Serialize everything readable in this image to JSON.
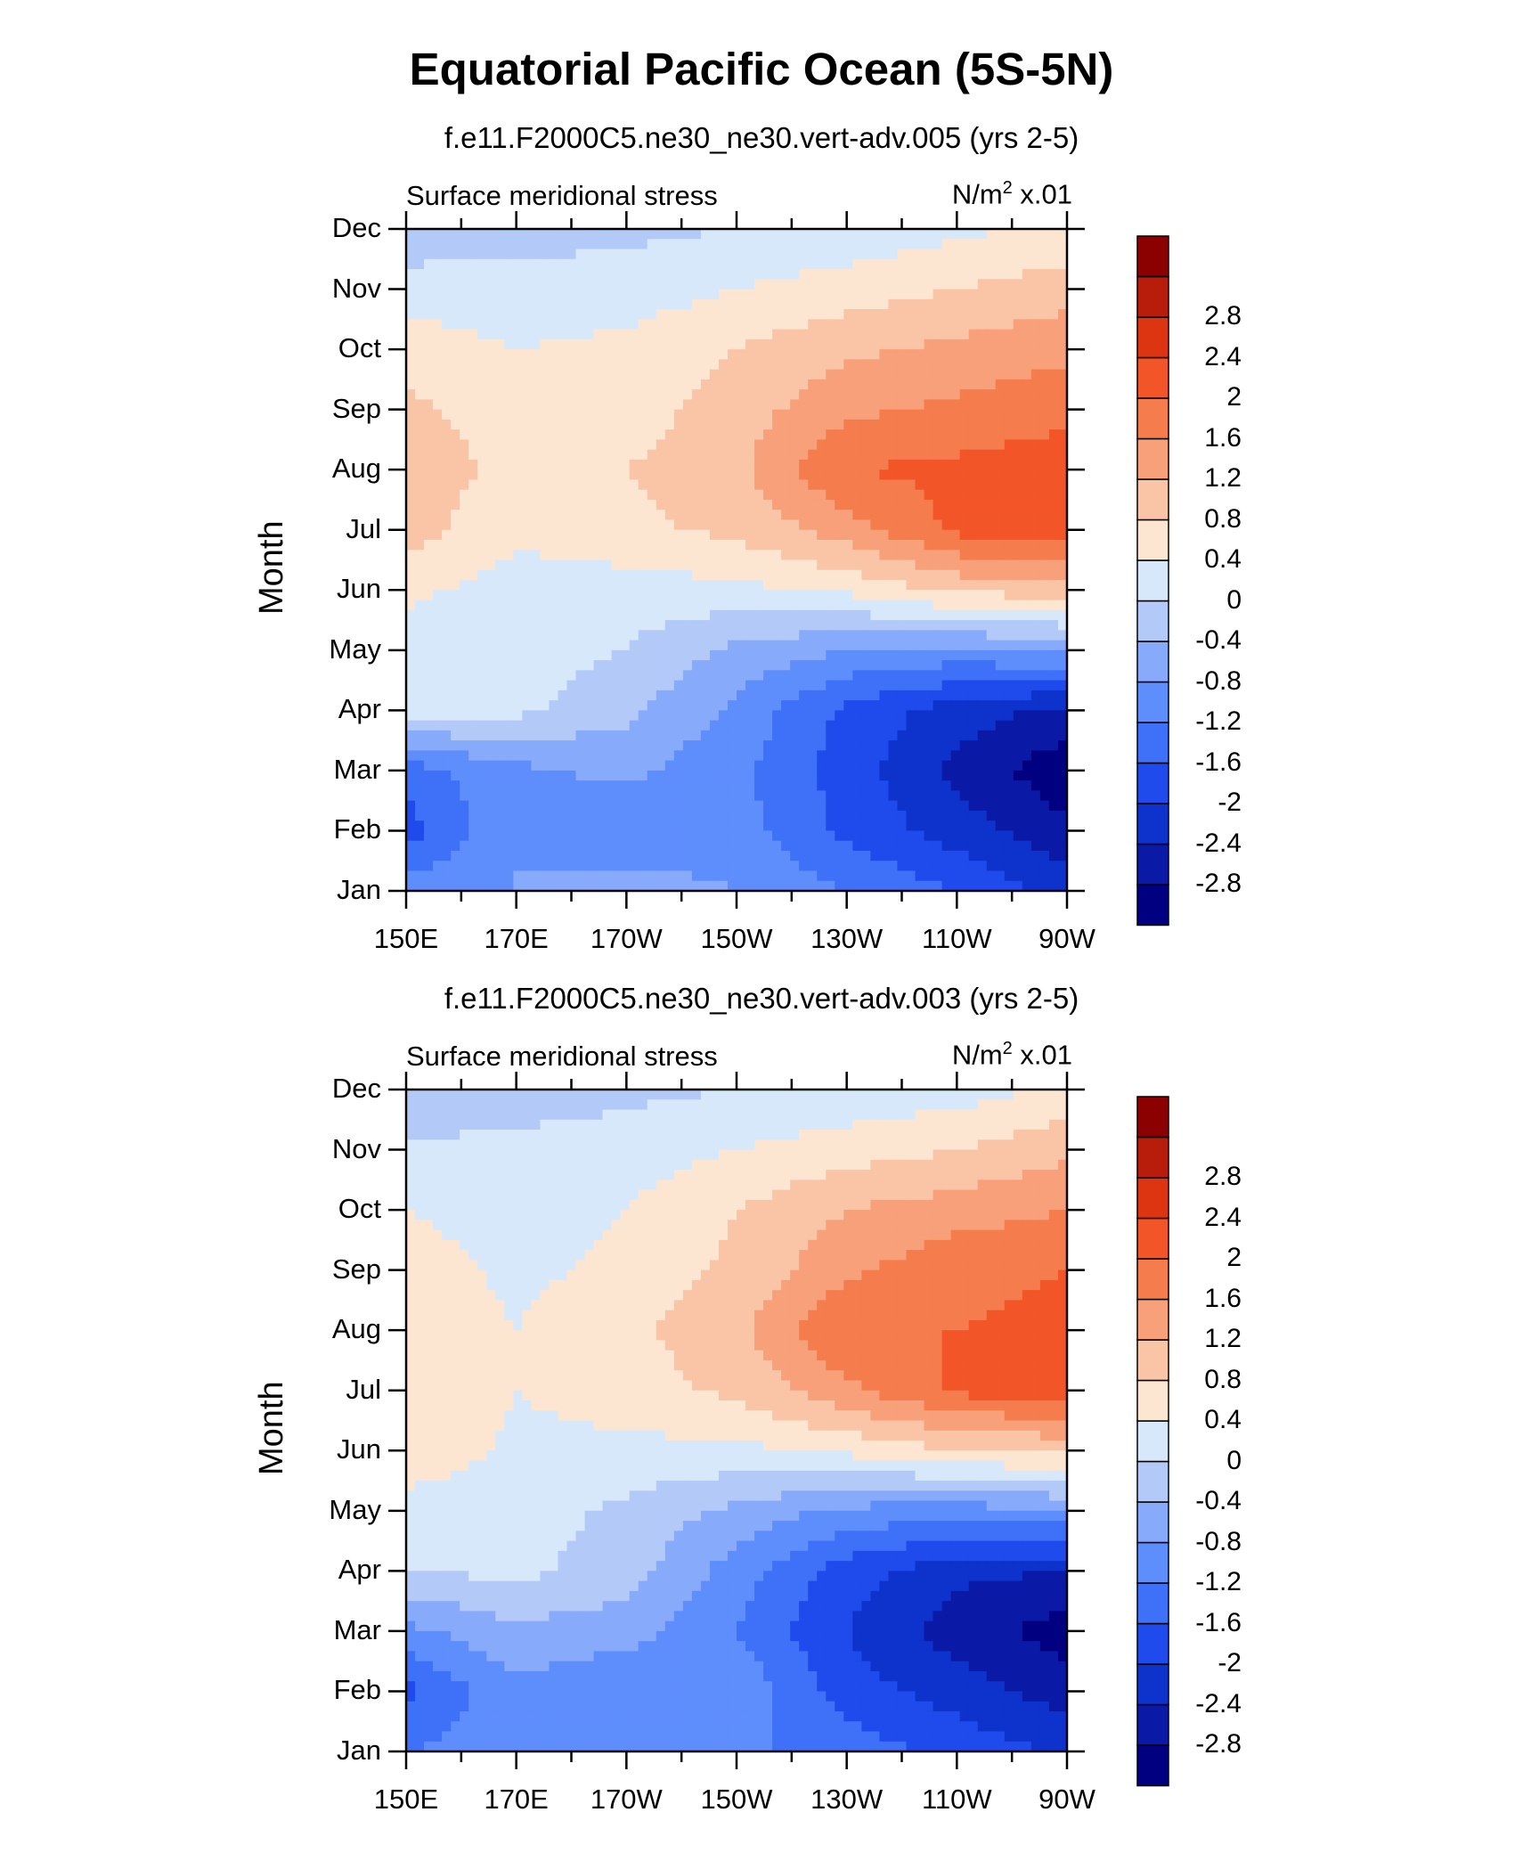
{
  "title": "Equatorial Pacific Ocean (5S-5N)",
  "panels": [
    {
      "run": "f.e11.F2000C5.ne30_ne30.vert-adv.005 (yrs 2-5)",
      "left_label": "Surface meridional stress",
      "units_pre": "N/m",
      "units_sup": "2",
      "units_post": " x.01"
    },
    {
      "run": "f.e11.F2000C5.ne30_ne30.vert-adv.003 (yrs 2-5)",
      "left_label": "Surface meridional stress",
      "units_pre": "N/m",
      "units_sup": "2",
      "units_post": " x.01"
    }
  ],
  "chart_data": [
    {
      "type": "heatmap",
      "title": "f.e11.F2000C5.ne30_ne30.vert-adv.005 (yrs 2-5)",
      "left_label": "Surface meridional stress",
      "units": "N/m2 x.01",
      "ylabel": "Month",
      "x": [
        "150E",
        "170E",
        "170W",
        "150W",
        "130W",
        "110W",
        "90W"
      ],
      "y": [
        "Jan",
        "Feb",
        "Mar",
        "Apr",
        "May",
        "Jun",
        "Jul",
        "Aug",
        "Sep",
        "Oct",
        "Nov",
        "Dec"
      ],
      "values": [
        [
          -1.0,
          -0.8,
          -0.6,
          -0.8,
          -1.2,
          -1.6,
          -2.2
        ],
        [
          -1.8,
          -0.8,
          -1.1,
          -1.0,
          -1.7,
          -2.2,
          -2.7
        ],
        [
          -1.4,
          -0.9,
          -0.7,
          -1.1,
          -1.8,
          -2.5,
          -3.1
        ],
        [
          0.2,
          0.1,
          -0.3,
          -0.9,
          -1.7,
          -2.2,
          -2.5
        ],
        [
          0.2,
          0.2,
          0.0,
          -0.5,
          -0.8,
          -0.9,
          -0.7
        ],
        [
          0.5,
          0.2,
          0.2,
          0.3,
          0.5,
          0.9,
          1.0
        ],
        [
          1.0,
          0.5,
          0.7,
          0.9,
          1.4,
          2.1,
          2.3
        ],
        [
          1.0,
          0.7,
          0.8,
          1.1,
          2.0,
          2.1,
          2.2
        ],
        [
          0.9,
          0.6,
          0.6,
          1.0,
          1.5,
          1.7,
          1.9
        ],
        [
          0.6,
          0.4,
          0.5,
          0.8,
          1.1,
          1.3,
          1.5
        ],
        [
          0.2,
          0.2,
          0.2,
          0.4,
          0.6,
          0.8,
          1.0
        ],
        [
          -0.3,
          -0.2,
          -0.1,
          0.0,
          0.1,
          0.3,
          0.5
        ]
      ],
      "levels": [
        -2.8,
        -2.4,
        -2,
        -1.6,
        -1.2,
        -0.8,
        -0.4,
        0,
        0.4,
        0.8,
        1.2,
        1.6,
        2,
        2.4,
        2.8
      ],
      "colors": [
        "#000080",
        "#0a1aa6",
        "#0d33cc",
        "#1f4aec",
        "#3f70f8",
        "#5e8dfc",
        "#88aafb",
        "#b3caf9",
        "#d7e8fa",
        "#fde6d1",
        "#f9c5a6",
        "#f7a079",
        "#f47c4d",
        "#f25527",
        "#dd3411",
        "#b81c0a",
        "#8b0000"
      ]
    },
    {
      "type": "heatmap",
      "title": "f.e11.F2000C5.ne30_ne30.vert-adv.003 (yrs 2-5)",
      "left_label": "Surface meridional stress",
      "units": "N/m2 x.01",
      "ylabel": "Month",
      "x": [
        "150E",
        "170E",
        "170W",
        "150W",
        "130W",
        "110W",
        "90W"
      ],
      "y": [
        "Jan",
        "Feb",
        "Mar",
        "Apr",
        "May",
        "Jun",
        "Jul",
        "Aug",
        "Sep",
        "Oct",
        "Nov",
        "Dec"
      ],
      "values": [
        [
          -1.2,
          -0.9,
          -0.8,
          -1.1,
          -1.4,
          -1.7,
          -2.1
        ],
        [
          -1.7,
          -0.9,
          -1.2,
          -0.9,
          -1.8,
          -2.2,
          -2.6
        ],
        [
          -0.9,
          -0.5,
          -0.6,
          -1.2,
          -2.0,
          -2.6,
          -3.0
        ],
        [
          0.0,
          0.1,
          -0.2,
          -1.0,
          -1.8,
          -2.3,
          -2.4
        ],
        [
          0.2,
          0.2,
          -0.1,
          -0.5,
          -0.9,
          -1.0,
          -0.8
        ],
        [
          0.7,
          0.3,
          0.3,
          0.3,
          0.5,
          0.8,
          0.9
        ],
        [
          0.8,
          0.4,
          0.6,
          0.9,
          1.5,
          2.1,
          2.2
        ],
        [
          0.7,
          0.4,
          0.7,
          1.1,
          2.0,
          2.0,
          2.1
        ],
        [
          0.6,
          0.3,
          0.5,
          0.9,
          1.5,
          1.9,
          2.0
        ],
        [
          0.4,
          0.2,
          0.4,
          0.8,
          1.2,
          1.4,
          1.6
        ],
        [
          0.1,
          0.1,
          0.2,
          0.4,
          0.6,
          0.8,
          1.1
        ],
        [
          -0.4,
          -0.2,
          -0.1,
          0.0,
          0.1,
          0.2,
          0.5
        ]
      ],
      "levels": [
        -2.8,
        -2.4,
        -2,
        -1.6,
        -1.2,
        -0.8,
        -0.4,
        0,
        0.4,
        0.8,
        1.2,
        1.6,
        2,
        2.4,
        2.8
      ],
      "colors": [
        "#000080",
        "#0a1aa6",
        "#0d33cc",
        "#1f4aec",
        "#3f70f8",
        "#5e8dfc",
        "#88aafb",
        "#b3caf9",
        "#d7e8fa",
        "#fde6d1",
        "#f9c5a6",
        "#f7a079",
        "#f47c4d",
        "#f25527",
        "#dd3411",
        "#b81c0a",
        "#8b0000"
      ]
    }
  ]
}
